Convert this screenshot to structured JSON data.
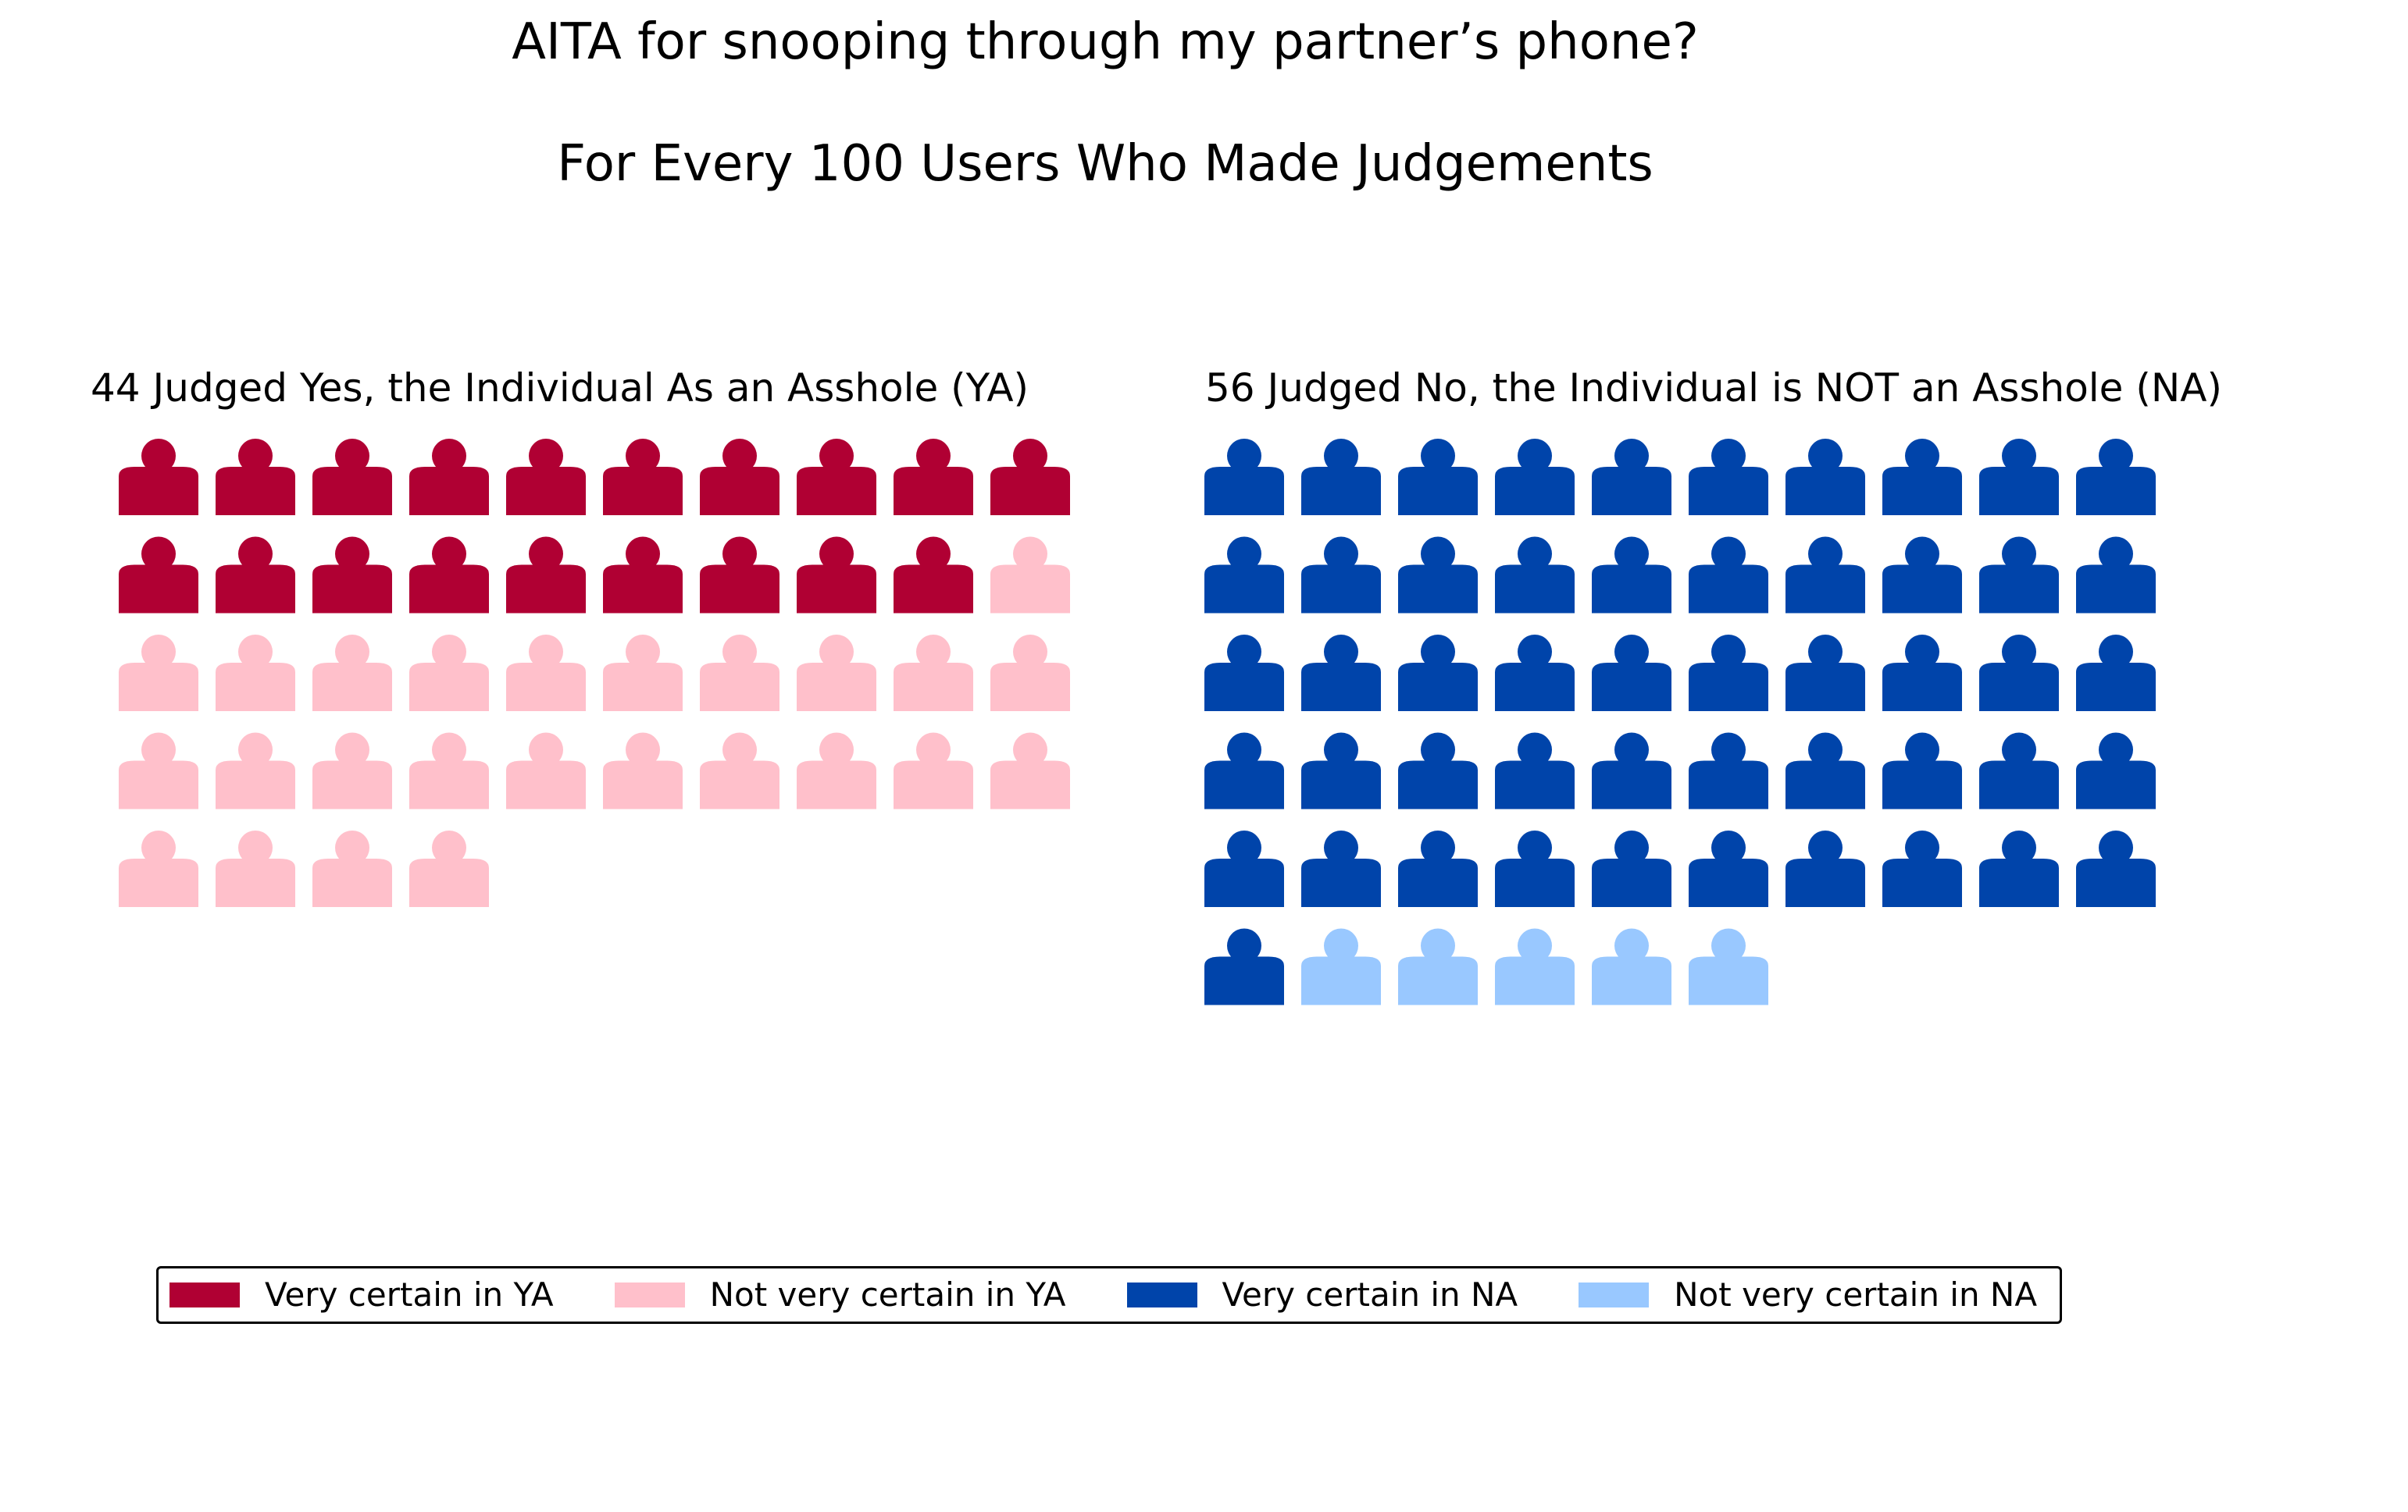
{
  "chart_data": {
    "type": "waffle",
    "title": "AITA for snooping through my partner’s phone?",
    "subtitle": "For Every 100 Users Who Made Judgements",
    "legend_position": "bottom",
    "grid": false,
    "units_per_row": 10,
    "panels": [
      {
        "title": "44 Judged Yes, the Individual As an Asshole (YA)",
        "total": 44,
        "series": [
          {
            "name": "Very certain in YA",
            "value": 19,
            "color": "#b00033"
          },
          {
            "name": "Not very certain in YA",
            "value": 25,
            "color": "#ffc0cb"
          }
        ]
      },
      {
        "title": "56 Judged No, the Individual is NOT an Asshole (NA)",
        "total": 56,
        "series": [
          {
            "name": "Very certain in NA",
            "value": 51,
            "color": "#0044aa"
          },
          {
            "name": "Not very certain in NA",
            "value": 5,
            "color": "#99c8ff"
          }
        ]
      }
    ],
    "legend": [
      {
        "label": "Very certain in YA",
        "color": "#b00033"
      },
      {
        "label": "Not very certain in YA",
        "color": "#ffc0cb"
      },
      {
        "label": "Very certain in NA",
        "color": "#0044aa"
      },
      {
        "label": "Not very certain in NA",
        "color": "#99c8ff"
      }
    ],
    "icon": "person-icon"
  }
}
